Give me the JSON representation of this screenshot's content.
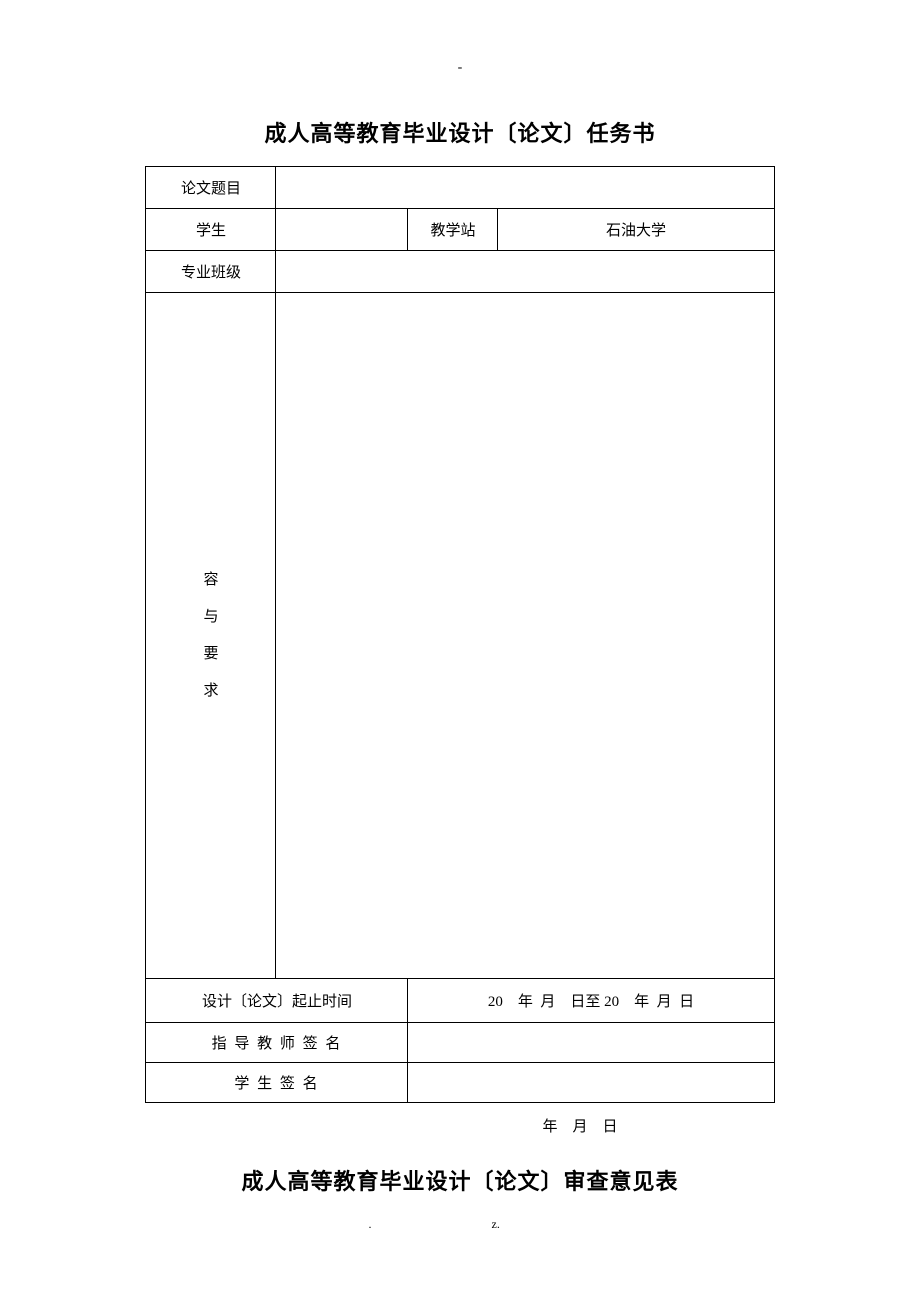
{
  "top_dash": "-",
  "title1": "成人高等教育毕业设计〔论文〕任务书",
  "rows": {
    "thesis_title_label": "论文题目",
    "thesis_title_value": "",
    "student_label": "学生",
    "student_value": "",
    "station_label": "教学站",
    "station_value": "石油大学",
    "class_label": "专业班级",
    "class_value": "",
    "content_req": [
      "容",
      "与",
      "要",
      "求"
    ],
    "time_label": "设计〔论文〕起止时间",
    "time_value": "20 年 月 日至 20 年 月 日",
    "advisor_label": "指 导 教 师 签 名",
    "advisor_value": "",
    "student_sig_label": "学 生 签 名",
    "student_sig_value": ""
  },
  "date_below": "年 月 日",
  "title2": "成人高等教育毕业设计〔论文〕审查意见表",
  "footer_dot": ".",
  "footer_z": "z."
}
